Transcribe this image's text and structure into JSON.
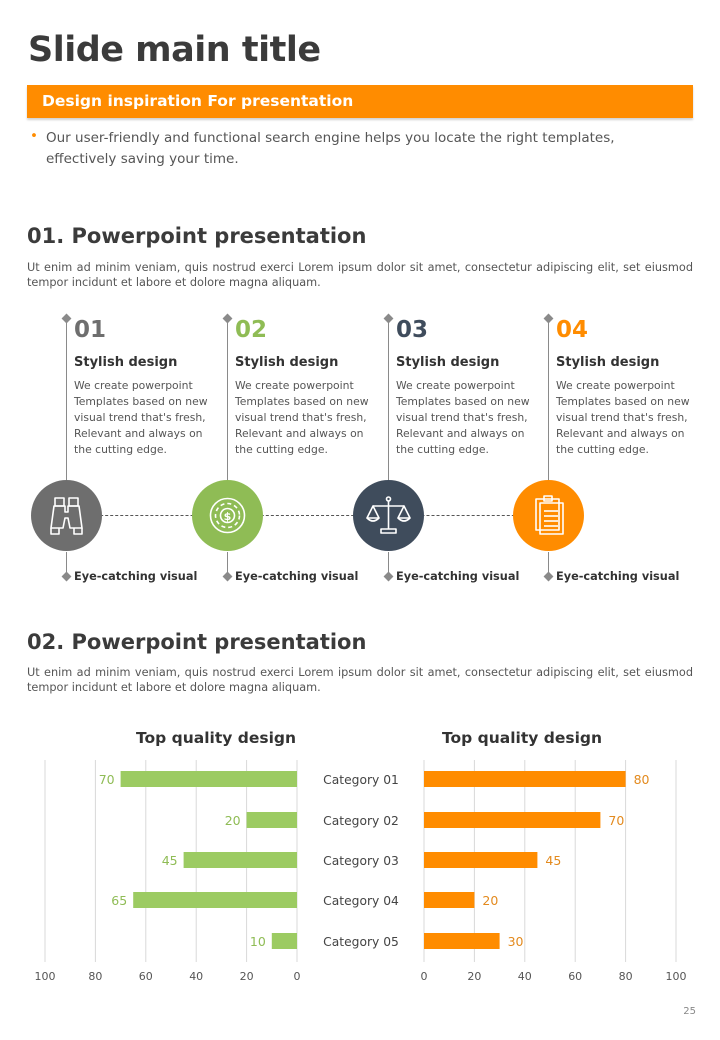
{
  "page": {
    "title": "Slide main title",
    "banner": "Design inspiration For presentation",
    "intro_bullet": "•",
    "intro": "Our user-friendly and functional search engine helps you locate the right templates, effectively saving your time.",
    "page_number": "25"
  },
  "section1": {
    "title": "01. Powerpoint presentation",
    "body": "Ut enim ad minim veniam, quis nostrud exerci  Lorem ipsum dolor sit amet, consectetur adipiscing elit, set eiusmod tempor incidunt et labore et dolore magna aliquam."
  },
  "steps": [
    {
      "number": "01",
      "heading": "Stylish design",
      "desc": "We create powerpoint Templates based on new visual trend that's fresh, Relevant and always on the cutting edge.",
      "footer": "Eye-catching visual",
      "color": "#6e6e6e",
      "num_color": "#6e6e6e",
      "icon": "binoculars-icon"
    },
    {
      "number": "02",
      "heading": "Stylish design",
      "desc": "We create powerpoint Templates based on new visual trend that's fresh, Relevant and always on the cutting edge.",
      "footer": "Eye-catching visual",
      "color": "#8fbc55",
      "num_color": "#8fbc55",
      "icon": "dollar-target-icon"
    },
    {
      "number": "03",
      "heading": "Stylish design",
      "desc": "We create powerpoint Templates based on new visual trend that's fresh, Relevant and always on the cutting edge.",
      "footer": "Eye-catching visual",
      "color": "#3f4c5c",
      "num_color": "#3f4c5c",
      "icon": "scales-icon"
    },
    {
      "number": "04",
      "heading": "Stylish design",
      "desc": "We create powerpoint Templates based on new visual trend that's fresh, Relevant and always on the cutting edge.",
      "footer": "Eye-catching visual",
      "color": "#ff8c00",
      "num_color": "#ff8c00",
      "icon": "clipboard-icon"
    }
  ],
  "section2": {
    "title": "02. Powerpoint presentation",
    "body": "Ut enim ad minim veniam, quis nostrud exerci  Lorem ipsum dolor sit amet, consectetur adipiscing elit, set eiusmod tempor incidunt et labore et dolore magna aliquam."
  },
  "chart_data": [
    {
      "type": "bar",
      "orientation": "horizontal",
      "direction": "reversed",
      "title": "Top quality design",
      "categories": [
        "Category 01",
        "Category 02",
        "Category 03",
        "Category 04",
        "Category 05"
      ],
      "values": [
        70,
        20,
        45,
        65,
        10
      ],
      "xlim": [
        0,
        100
      ],
      "xticks": [
        100,
        80,
        60,
        40,
        20,
        0
      ],
      "grid": true,
      "color": "#9ccb62",
      "label_color": "#8fbc55"
    },
    {
      "type": "bar",
      "orientation": "horizontal",
      "direction": "normal",
      "title": "Top quality design",
      "categories": [
        "Category 01",
        "Category 02",
        "Category 03",
        "Category 04",
        "Category 05"
      ],
      "values": [
        80,
        70,
        45,
        20,
        30
      ],
      "xlim": [
        0,
        100
      ],
      "xticks": [
        0,
        20,
        40,
        60,
        80,
        100
      ],
      "grid": true,
      "color": "#ff8c00",
      "label_color": "#e38a1e"
    }
  ]
}
